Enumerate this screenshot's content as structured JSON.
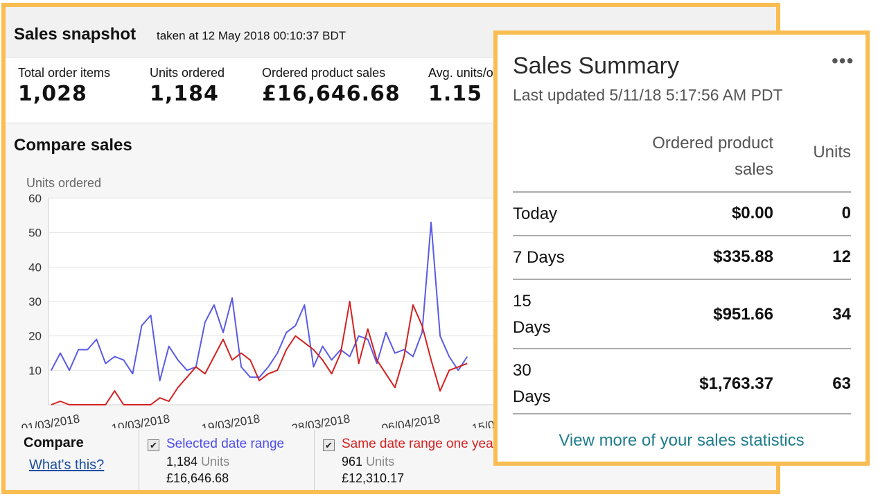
{
  "snapshot": {
    "title": "Sales snapshot",
    "taken": "taken at 12 May 2018 00:10:37 BDT",
    "metrics": [
      {
        "label": "Total order items",
        "value": "1,028"
      },
      {
        "label": "Units ordered",
        "value": "1,184"
      },
      {
        "label": "Ordered product sales",
        "value": "£16,646.68"
      },
      {
        "label": "Avg. units/o",
        "value": "1.15"
      }
    ]
  },
  "compare": {
    "title": "Compare sales",
    "legend_title": "Compare",
    "whats_this": "What's this?",
    "series_legend": [
      {
        "label": "Selected date range",
        "units_value": "1,184",
        "units_word": "Units",
        "sales": "£16,646.68",
        "color": "#4b4be8"
      },
      {
        "label": "Same date range one yea",
        "units_value": "961",
        "units_word": "Units",
        "sales": "£12,310.17",
        "color": "#d42020"
      }
    ]
  },
  "chart_data": {
    "type": "line",
    "ylabel": "Units ordered",
    "ylim": [
      0,
      60
    ],
    "yticks": [
      10,
      20,
      30,
      40,
      50,
      60
    ],
    "x_tick_labels": [
      "01/03/2018",
      "10/03/2018",
      "19/03/2018",
      "28/03/2018",
      "06/04/2018",
      "15/0"
    ],
    "series": [
      {
        "color": "#5a5ae6",
        "values": [
          10,
          15,
          10,
          16,
          16,
          19,
          12,
          14,
          13,
          9,
          23,
          26,
          7,
          17,
          13,
          10,
          11,
          24,
          29,
          21,
          31,
          11,
          8,
          8,
          11,
          15,
          21,
          23,
          29,
          11,
          17,
          13,
          16,
          14,
          20,
          19,
          12,
          21,
          15,
          16,
          14,
          21,
          53,
          20,
          14,
          10,
          14
        ]
      },
      {
        "color": "#d42020",
        "values": [
          0,
          1,
          0,
          0,
          0,
          0,
          0,
          4,
          0,
          0,
          0,
          0,
          2,
          1,
          5,
          8,
          11,
          9,
          14,
          19,
          13,
          15,
          13,
          7,
          9,
          10,
          16,
          20,
          18,
          16,
          13,
          9,
          15,
          30,
          12,
          22,
          13,
          9,
          5,
          14,
          29,
          23,
          13,
          4,
          10,
          11,
          12
        ]
      }
    ]
  },
  "summary": {
    "title": "Sales Summary",
    "more": "•••",
    "updated": "Last updated 5/11/18 5:17:56 AM PDT",
    "col_sales_line1": "Ordered product",
    "col_sales_line2": "sales",
    "col_units": "Units",
    "rows": [
      {
        "label_line1": "Today",
        "label_line2": "",
        "sales": "$0.00",
        "units": "0"
      },
      {
        "label_line1": "7 Days",
        "label_line2": "",
        "sales": "$335.88",
        "units": "12"
      },
      {
        "label_line1": "15",
        "label_line2": "Days",
        "sales": "$951.66",
        "units": "34"
      },
      {
        "label_line1": "30",
        "label_line2": "Days",
        "sales": "$1,763.37",
        "units": "63"
      }
    ],
    "view_more": "View more of your sales statistics"
  }
}
